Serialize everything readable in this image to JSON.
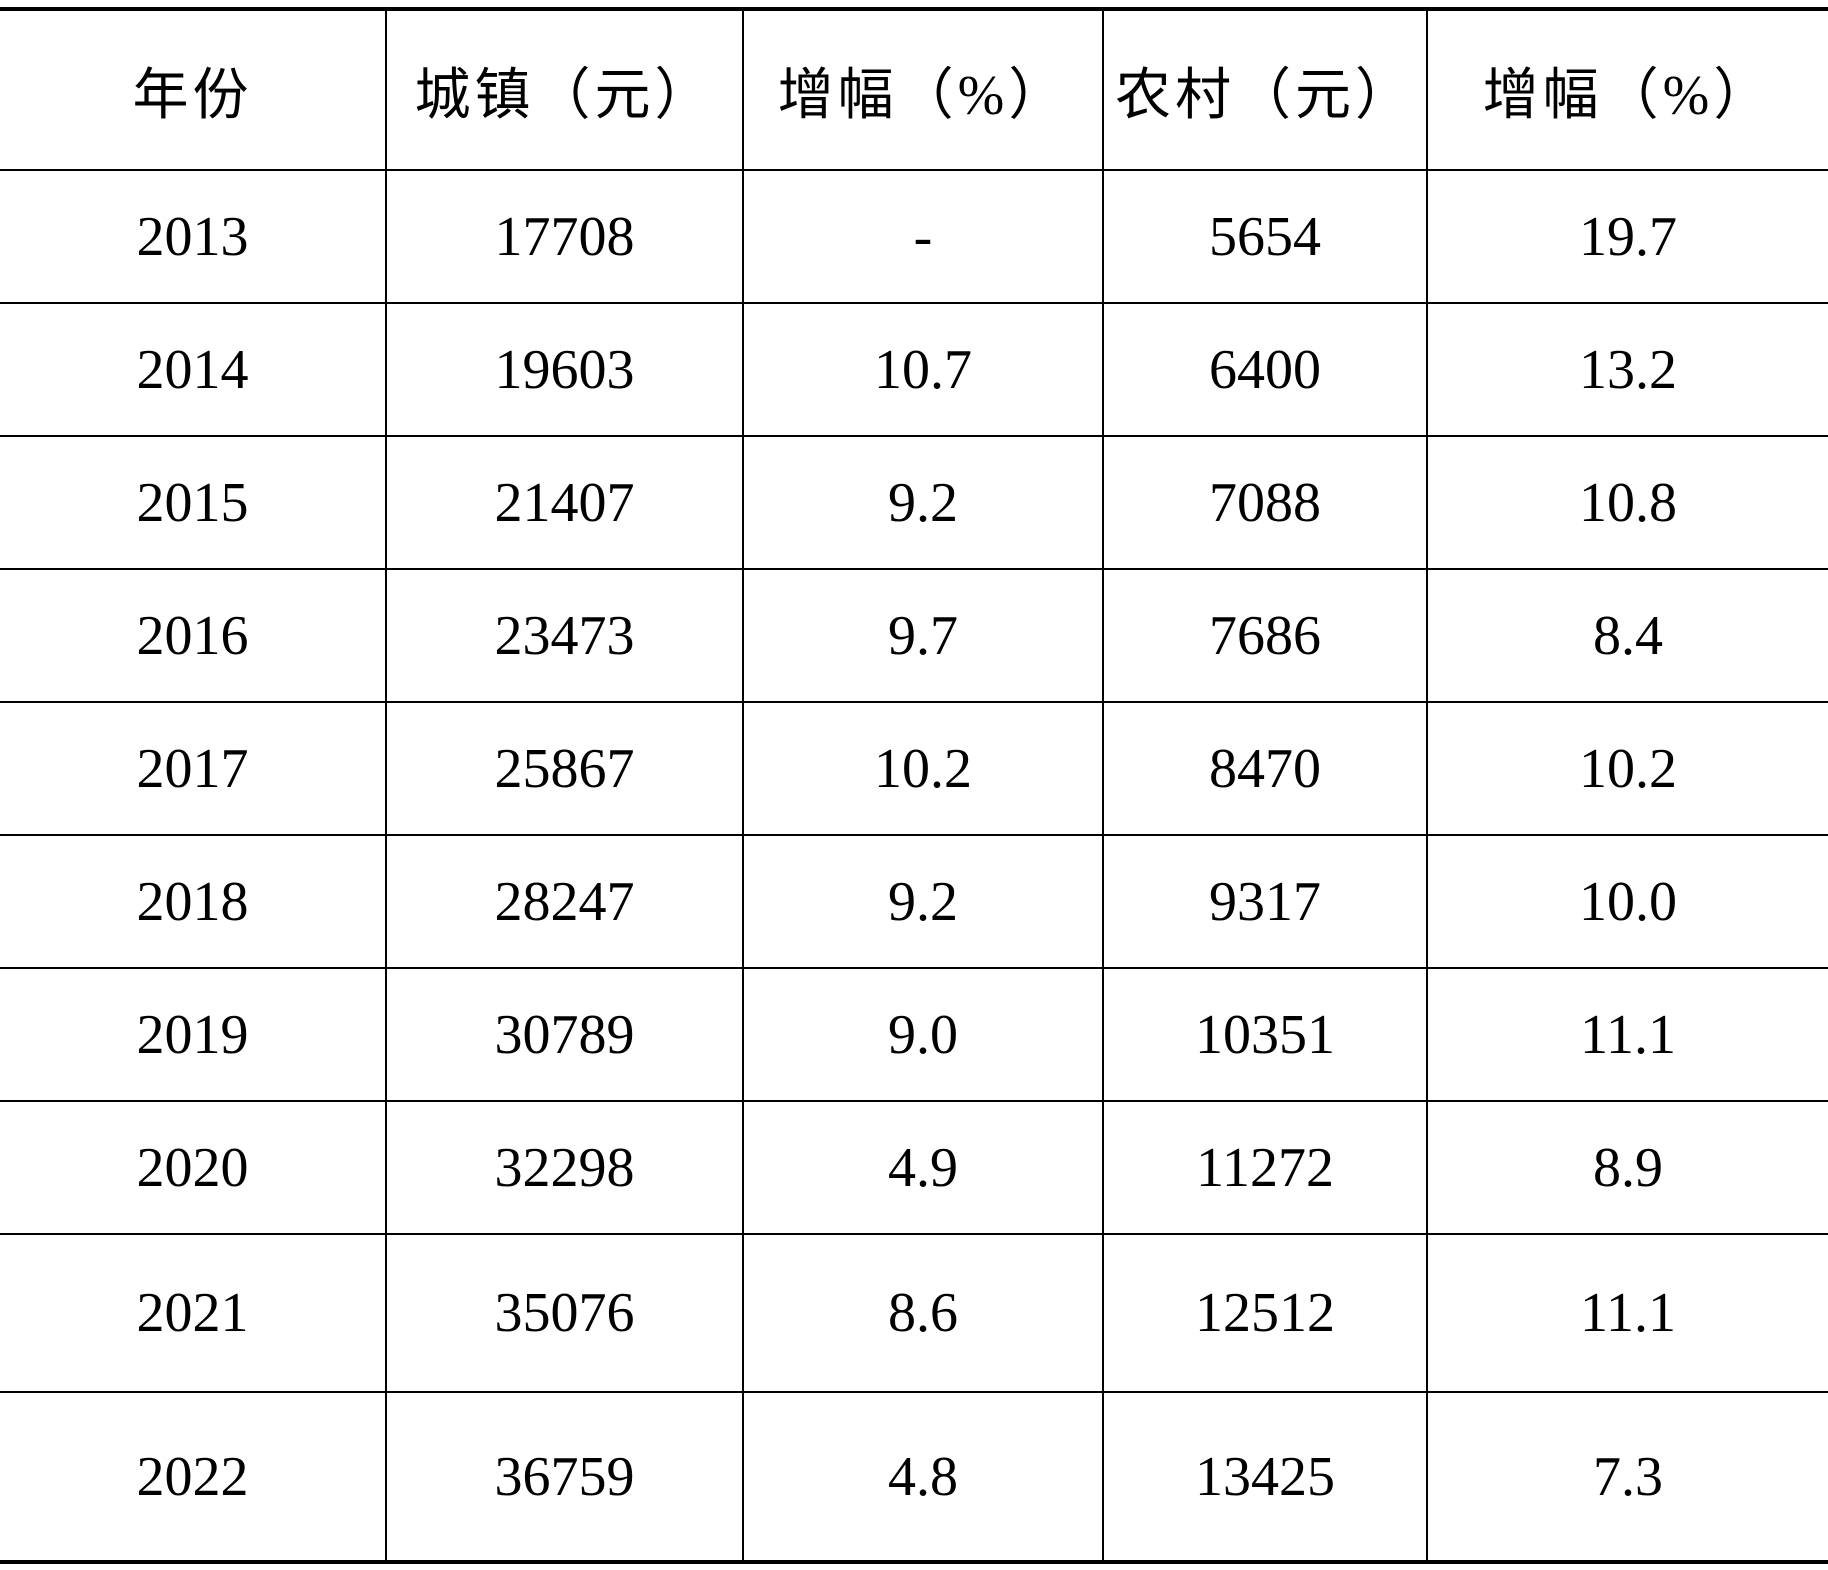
{
  "table": {
    "columns": [
      "年份",
      "城镇（元）",
      "增幅（%）",
      "农村（元）",
      "增幅（%）"
    ],
    "rows": [
      [
        "2013",
        "17708",
        "-",
        "5654",
        "19.7"
      ],
      [
        "2014",
        "19603",
        "10.7",
        "6400",
        "13.2"
      ],
      [
        "2015",
        "21407",
        "9.2",
        "7088",
        "10.8"
      ],
      [
        "2016",
        "23473",
        "9.7",
        "7686",
        "8.4"
      ],
      [
        "2017",
        "25867",
        "10.2",
        "8470",
        "10.2"
      ],
      [
        "2018",
        "28247",
        "9.2",
        "9317",
        "10.0"
      ],
      [
        "2019",
        "30789",
        "9.0",
        "10351",
        "11.1"
      ],
      [
        "2020",
        "32298",
        "4.9",
        "11272",
        "8.9"
      ],
      [
        "2021",
        "35076",
        "8.6",
        "12512",
        "11.1"
      ],
      [
        "2022",
        "36759",
        "4.8",
        "13425",
        "7.3"
      ]
    ]
  }
}
